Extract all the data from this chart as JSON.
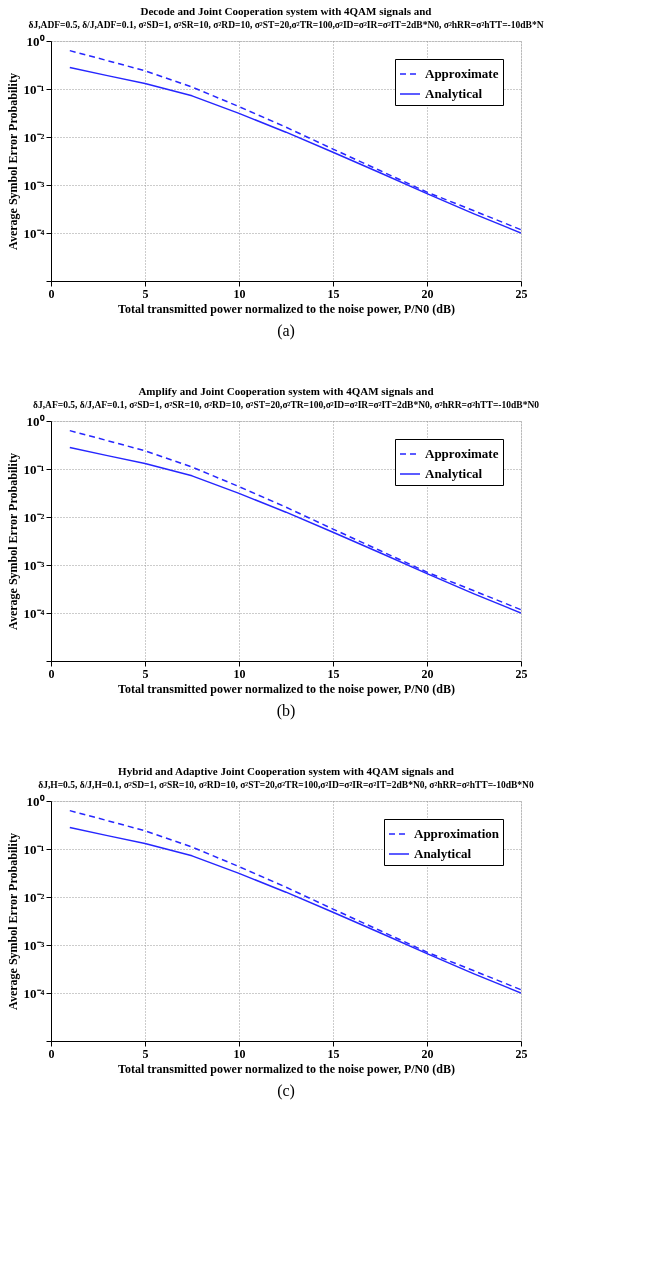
{
  "chart_data": [
    {
      "type": "line",
      "title": "Decode and Joint Cooperation system with 4QAM signals and",
      "subtitle": "δJ,ADF=0.5, δ/J,ADF=0.1, σ²SD=1, σ²SR=10, σ²RD=10, σ²ST=20,σ²TR=100,σ²ID=σ²IR=σ²IT=2dB*N0, σ²hRR=σ²hTT=-10dB*N",
      "xlabel": "Total transmitted power normalized to the noise power, P/N0 (dB)",
      "ylabel": "Average Symbol Error Probability",
      "annotations": [
        "(a)"
      ],
      "log": "y",
      "grid": true,
      "legend": "top right",
      "xlim": [
        0,
        25
      ],
      "xticks": [
        0,
        5,
        10,
        15,
        20,
        25
      ],
      "ylim": [
        1e-05,
        1
      ],
      "yticks": [
        {
          "value": 1,
          "label": "10⁰"
        },
        {
          "value": 0.1,
          "label": "10⁻¹"
        },
        {
          "value": 0.01,
          "label": "10⁻²"
        },
        {
          "value": 0.001,
          "label": "10⁻³"
        },
        {
          "value": 0.0001,
          "label": "10⁻⁴"
        },
        {
          "value": 1e-05,
          "label": null
        }
      ],
      "x": [
        1,
        3,
        5,
        7.5,
        10,
        12.5,
        15,
        17.5,
        20,
        22.5,
        25
      ],
      "series": [
        {
          "name": "Approximate",
          "color": "#2626ff",
          "line_style": "dashed",
          "values": [
            0.63,
            0.39,
            0.24,
            0.11,
            0.043,
            0.016,
            0.0056,
            0.002,
            0.00071,
            0.00029,
            0.000117
          ]
        },
        {
          "name": "Analytical",
          "color": "#2626ff",
          "line_style": "solid",
          "values": [
            0.28,
            0.19,
            0.13,
            0.072,
            0.031,
            0.0126,
            0.0048,
            0.0018,
            0.00066,
            0.00025,
            0.0001
          ]
        }
      ]
    },
    {
      "type": "line",
      "title": "Amplify and Joint Cooperation system with 4QAM signals and",
      "subtitle": "δJ,AF=0.5, δ/J,AF=0.1, σ²SD=1, σ²SR=10, σ²RD=10, σ²ST=20,σ²TR=100,σ²ID=σ²IR=σ²IT=2dB*N0, σ²hRR=σ²hTT=-10dB*N0",
      "xlabel": "Total transmitted power normalized to the noise power, P/N0 (dB)",
      "ylabel": "Average Symbol Error Probability",
      "annotations": [
        "(b)"
      ],
      "log": "y",
      "grid": true,
      "legend": "top right",
      "xlim": [
        0,
        25
      ],
      "xticks": [
        0,
        5,
        10,
        15,
        20,
        25
      ],
      "ylim": [
        1e-05,
        1
      ],
      "yticks": [
        {
          "value": 1,
          "label": "10⁰"
        },
        {
          "value": 0.1,
          "label": "10⁻¹"
        },
        {
          "value": 0.01,
          "label": "10⁻²"
        },
        {
          "value": 0.001,
          "label": "10⁻³"
        },
        {
          "value": 0.0001,
          "label": "10⁻⁴"
        },
        {
          "value": 1e-05,
          "label": null
        }
      ],
      "x": [
        1,
        3,
        5,
        7.5,
        10,
        12.5,
        15,
        17.5,
        20,
        22.5,
        25
      ],
      "series": [
        {
          "name": "Approximate",
          "color": "#2626ff",
          "line_style": "dashed",
          "values": [
            0.63,
            0.39,
            0.24,
            0.11,
            0.043,
            0.016,
            0.0056,
            0.002,
            0.00071,
            0.00029,
            0.000117
          ]
        },
        {
          "name": "Analytical",
          "color": "#2626ff",
          "line_style": "solid",
          "values": [
            0.28,
            0.19,
            0.13,
            0.072,
            0.031,
            0.0126,
            0.0048,
            0.0018,
            0.00066,
            0.00025,
            0.0001
          ]
        }
      ]
    },
    {
      "type": "line",
      "title": "Hybrid and Adaptive Joint Cooperation system with 4QAM signals and",
      "subtitle": "δJ,H=0.5, δ/J,H=0.1, σ²SD=1, σ²SR=10, σ²RD=10, σ²ST=20,σ²TR=100,σ²ID=σ²IR=σ²IT=2dB*N0, σ²hRR=σ²hTT=-10dB*N0",
      "xlabel": "Total transmitted power normalized to the noise power, P/N0 (dB)",
      "ylabel": "Average Symbol Error Probability",
      "annotations": [
        "(c)"
      ],
      "log": "y",
      "grid": true,
      "legend": "top right",
      "xlim": [
        0,
        25
      ],
      "xticks": [
        0,
        5,
        10,
        15,
        20,
        25
      ],
      "ylim": [
        1e-05,
        1
      ],
      "yticks": [
        {
          "value": 1,
          "label": "10⁰"
        },
        {
          "value": 0.1,
          "label": "10⁻¹"
        },
        {
          "value": 0.01,
          "label": "10⁻²"
        },
        {
          "value": 0.001,
          "label": "10⁻³"
        },
        {
          "value": 0.0001,
          "label": "10⁻⁴"
        },
        {
          "value": 1e-05,
          "label": null
        }
      ],
      "x": [
        1,
        3,
        5,
        7.5,
        10,
        12.5,
        15,
        17.5,
        20,
        22.5,
        25
      ],
      "series": [
        {
          "name": "Approximation",
          "color": "#2626ff",
          "line_style": "dashed",
          "values": [
            0.63,
            0.39,
            0.24,
            0.11,
            0.043,
            0.016,
            0.0056,
            0.002,
            0.00071,
            0.00029,
            0.000117
          ]
        },
        {
          "name": "Analytical",
          "color": "#2626ff",
          "line_style": "solid",
          "values": [
            0.28,
            0.19,
            0.13,
            0.072,
            0.031,
            0.0126,
            0.0048,
            0.0018,
            0.00066,
            0.00025,
            0.0001
          ]
        }
      ]
    }
  ]
}
